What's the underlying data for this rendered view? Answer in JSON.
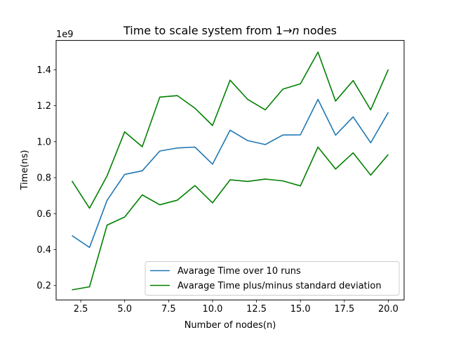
{
  "chart_data": {
    "type": "line",
    "title_prefix": "Time to scale system from 1→",
    "title_var": "n",
    "title_suffix": " nodes",
    "xlabel": "Number of nodes(n)",
    "ylabel": "Time(ns)",
    "y_offset_label": "1e9",
    "xlim": [
      1.1,
      20.9
    ],
    "ylim": [
      0.12,
      1.563
    ],
    "x_ticks": [
      2.5,
      5.0,
      7.5,
      10.0,
      12.5,
      15.0,
      17.5,
      20.0
    ],
    "x_tick_labels": [
      "2.5",
      "5.0",
      "7.5",
      "10.0",
      "12.5",
      "15.0",
      "17.5",
      "20.0"
    ],
    "y_ticks": [
      0.2,
      0.4,
      0.6,
      0.8,
      1.0,
      1.2,
      1.4
    ],
    "y_tick_labels": [
      "0.2",
      "0.4",
      "0.6",
      "0.8",
      "1.0",
      "1.2",
      "1.4"
    ],
    "legend_position": "lower right",
    "x": [
      2,
      3,
      4,
      5,
      6,
      7,
      8,
      9,
      10,
      11,
      12,
      13,
      14,
      15,
      16,
      17,
      18,
      19,
      20
    ],
    "series": [
      {
        "name": "Avarage Time over 10 runs",
        "color": "#1f77b4",
        "in_legend": true,
        "values": [
          0.478,
          0.412,
          0.674,
          0.818,
          0.838,
          0.948,
          0.965,
          0.97,
          0.875,
          1.064,
          1.006,
          0.984,
          1.037,
          1.038,
          1.235,
          1.036,
          1.138,
          0.994,
          1.163
        ]
      },
      {
        "name": "Avarage Time plus/minus standard deviation",
        "color": "#008000",
        "in_legend": true,
        "values": [
          0.782,
          0.63,
          0.81,
          1.055,
          0.972,
          1.248,
          1.256,
          1.186,
          1.09,
          1.342,
          1.235,
          1.177,
          1.292,
          1.322,
          1.498,
          1.226,
          1.34,
          1.177,
          1.401
        ]
      },
      {
        "name": "",
        "color": "#008000",
        "in_legend": false,
        "values": [
          0.176,
          0.193,
          0.536,
          0.581,
          0.704,
          0.649,
          0.675,
          0.756,
          0.66,
          0.788,
          0.779,
          0.792,
          0.782,
          0.754,
          0.97,
          0.848,
          0.938,
          0.814,
          0.929
        ]
      }
    ]
  }
}
